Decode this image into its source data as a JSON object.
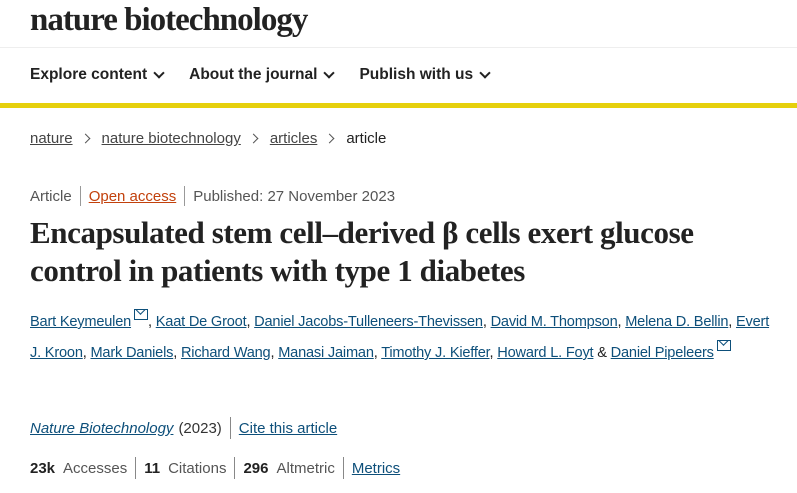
{
  "header": {
    "logo": "nature biotechnology",
    "nav": [
      {
        "label": "Explore content"
      },
      {
        "label": "About the journal"
      },
      {
        "label": "Publish with us"
      }
    ],
    "accent_color": "#e6d00c"
  },
  "breadcrumb": [
    "nature",
    "nature biotechnology",
    "articles",
    "article"
  ],
  "article": {
    "type": "Article",
    "access": "Open access",
    "published": "Published: 27 November 2023",
    "title": "Encapsulated stem cell–derived β cells exert glucose control in patients with type 1 diabetes",
    "authors": [
      {
        "name": "Bart Keymeulen",
        "email": true
      },
      {
        "name": "Kaat De Groot"
      },
      {
        "name": "Daniel Jacobs-Tulleneers-Thevissen"
      },
      {
        "name": "David M. Thompson"
      },
      {
        "name": "Melena D. Bellin"
      },
      {
        "name": "Evert J. Kroon"
      },
      {
        "name": "Mark Daniels"
      },
      {
        "name": "Richard Wang"
      },
      {
        "name": "Manasi Jaiman"
      },
      {
        "name": "Timothy J. Kieffer"
      },
      {
        "name": "Howard L. Foyt"
      },
      {
        "name": "Daniel Pipeleers",
        "email": true
      }
    ],
    "and": "&",
    "journal": "Nature Biotechnology",
    "year": "(2023)",
    "cite_label": "Cite this article",
    "metrics": {
      "accesses_value": "23k",
      "accesses_label": "Accesses",
      "citations_value": "11",
      "citations_label": "Citations",
      "altmetric_value": "296",
      "altmetric_label": "Altmetric",
      "metrics_link": "Metrics"
    }
  }
}
